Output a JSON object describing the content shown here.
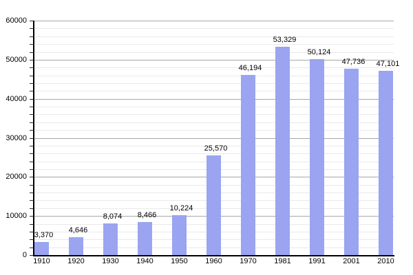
{
  "chart_data": {
    "type": "bar",
    "title": "",
    "xlabel": "",
    "ylabel": "",
    "categories": [
      "1910",
      "1920",
      "1930",
      "1940",
      "1950",
      "1960",
      "1970",
      "1981",
      "1991",
      "2001",
      "2010"
    ],
    "values": [
      3370,
      4646,
      8074,
      8466,
      10224,
      25570,
      46194,
      53329,
      50124,
      47736,
      47101
    ],
    "value_labels": [
      "3,370",
      "4,646",
      "8,074",
      "8,466",
      "10,224",
      "25,570",
      "46,194",
      "53,329",
      "50,124",
      "47,736",
      "47,101"
    ],
    "ylim": [
      0,
      60000
    ],
    "y_major_step": 10000,
    "y_minor_step": 2000,
    "y_tick_labels": [
      "0",
      "10000",
      "20000",
      "30000",
      "40000",
      "50000",
      "60000"
    ],
    "grid": "on",
    "legend": "none",
    "colors": {
      "bar": "#9aa4f0",
      "grid_major": "#a6a6a6",
      "grid_minor": "#e9e9e9",
      "axis": "#000000",
      "text": "#000000",
      "background": "#ffffff"
    }
  }
}
